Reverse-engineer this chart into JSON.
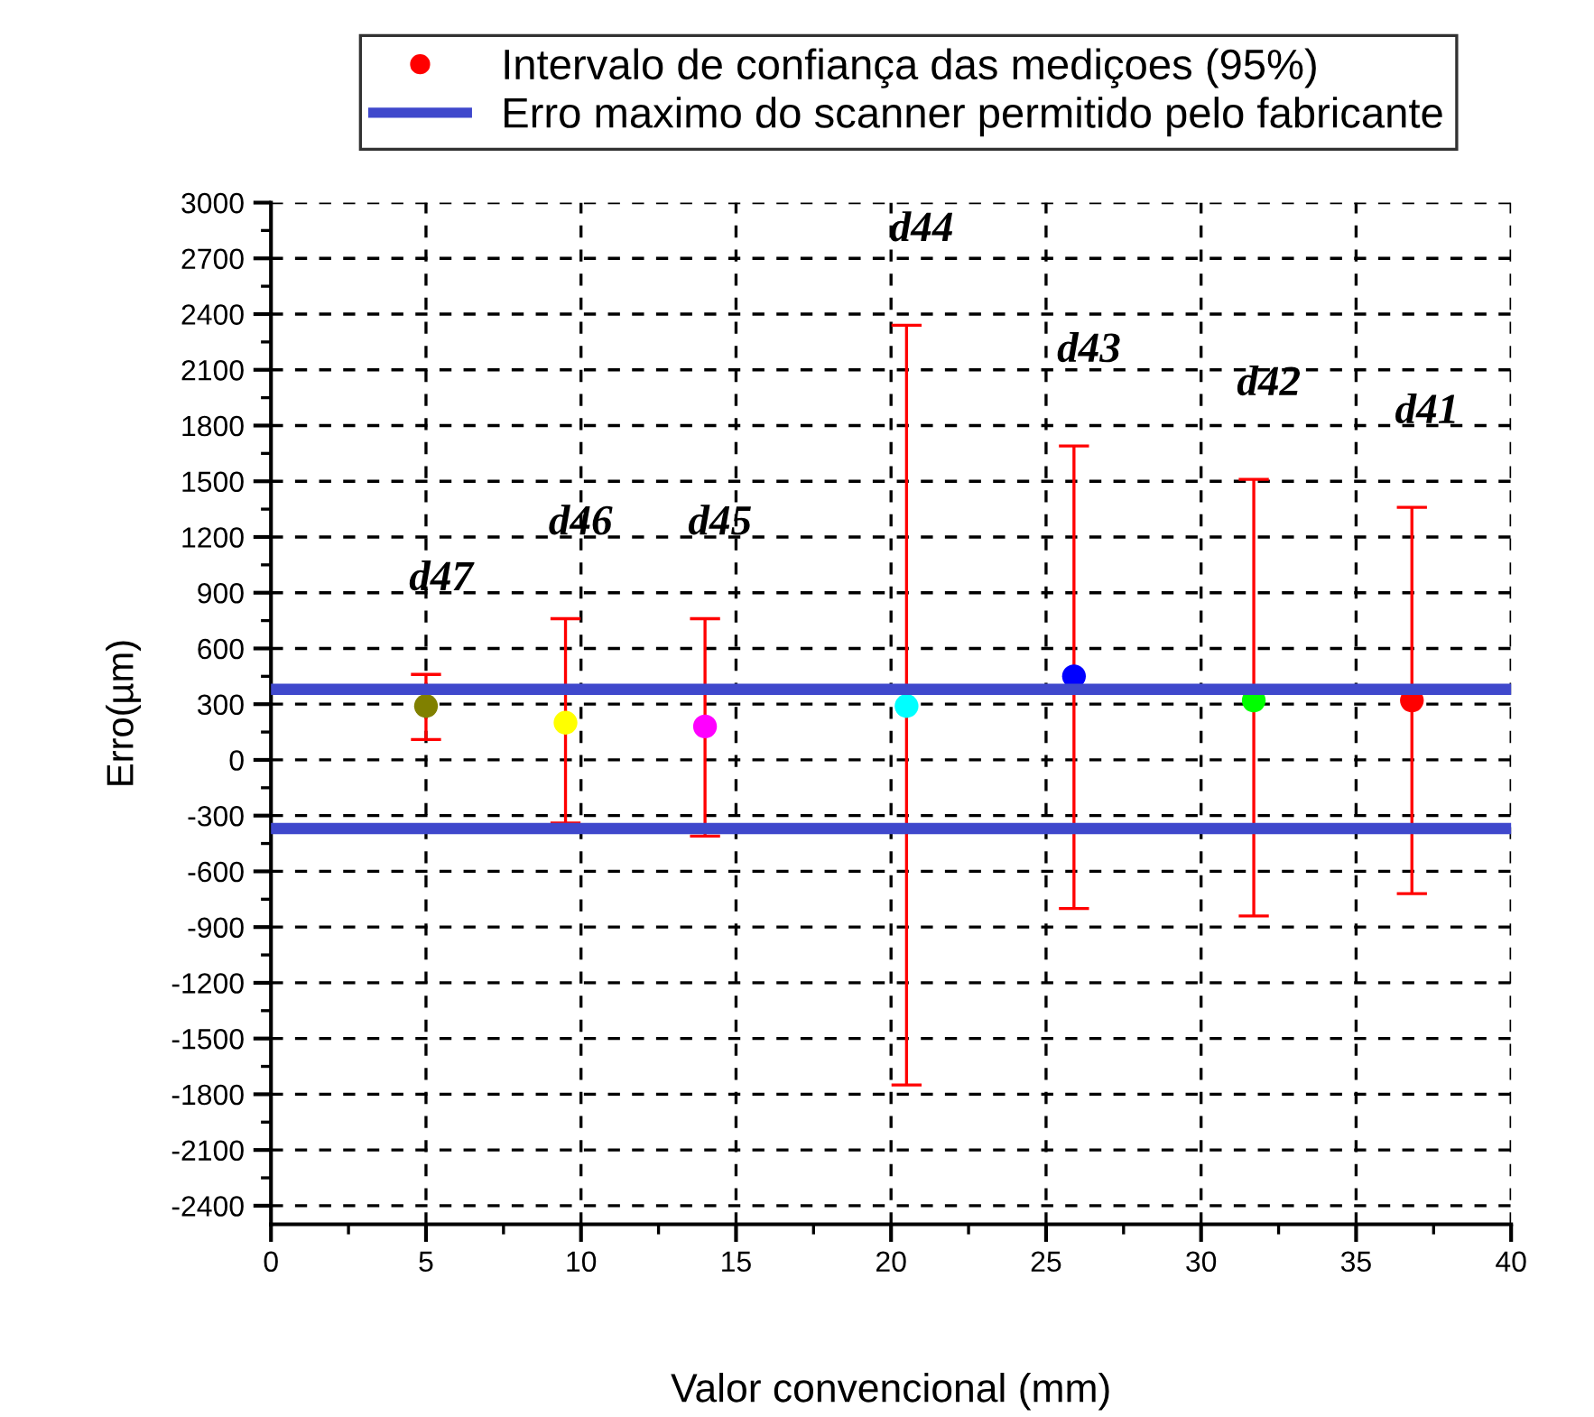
{
  "chart_data": {
    "type": "scatter",
    "xlabel": "Valor convencional (mm)",
    "ylabel": "Erro(µm)",
    "xlim": [
      0,
      40
    ],
    "xticks": [
      0,
      5,
      10,
      15,
      20,
      25,
      30,
      35,
      40
    ],
    "ylim": [
      -2500,
      3000
    ],
    "yticks": [
      -2400,
      -2100,
      -1800,
      -1500,
      -1200,
      -900,
      -600,
      -300,
      0,
      300,
      600,
      900,
      1200,
      1500,
      1800,
      2100,
      2400,
      2700,
      3000
    ],
    "grid": true,
    "legend": "top",
    "marker": "circle",
    "series": [
      {
        "name": "Intervalo de confiança das mediçoes (95%)",
        "color": "#ff0000",
        "x": [
          5.0,
          9.5,
          14.0,
          20.5,
          25.9,
          31.7,
          36.8
        ],
        "values": [
          290,
          200,
          180,
          290,
          450,
          320,
          320
        ],
        "colors": [
          "#808000",
          "#ffff00",
          "#ff00ff",
          "#00ffff",
          "#0000ff",
          "#00ff00",
          "#ff0000"
        ],
        "errors": [
          [
            110,
            460
          ],
          [
            -340,
            760
          ],
          [
            -410,
            760
          ],
          [
            -1750,
            2340
          ],
          [
            -800,
            1690
          ],
          [
            -840,
            1510
          ],
          [
            -720,
            1360
          ]
        ]
      }
    ],
    "ref_lines": [
      {
        "axis": "y",
        "value": 380,
        "label": "Erro maximo do scanner permitido pelo fabricante",
        "color": "#3f48cc"
      },
      {
        "axis": "y",
        "value": -370,
        "color": "#3f48cc"
      }
    ],
    "annotations": [
      {
        "text": "d47",
        "x": 5.0,
        "y": 460
      },
      {
        "text": "d46",
        "x": 9.5,
        "y": 760
      },
      {
        "text": "d45",
        "x": 14.0,
        "y": 760
      },
      {
        "text": "d44",
        "x": 20.5,
        "y": 2340
      },
      {
        "text": "d43",
        "x": 25.9,
        "y": 1690
      },
      {
        "text": "d42",
        "x": 31.7,
        "y": 1510
      },
      {
        "text": "d41",
        "x": 36.8,
        "y": 1360
      }
    ]
  }
}
